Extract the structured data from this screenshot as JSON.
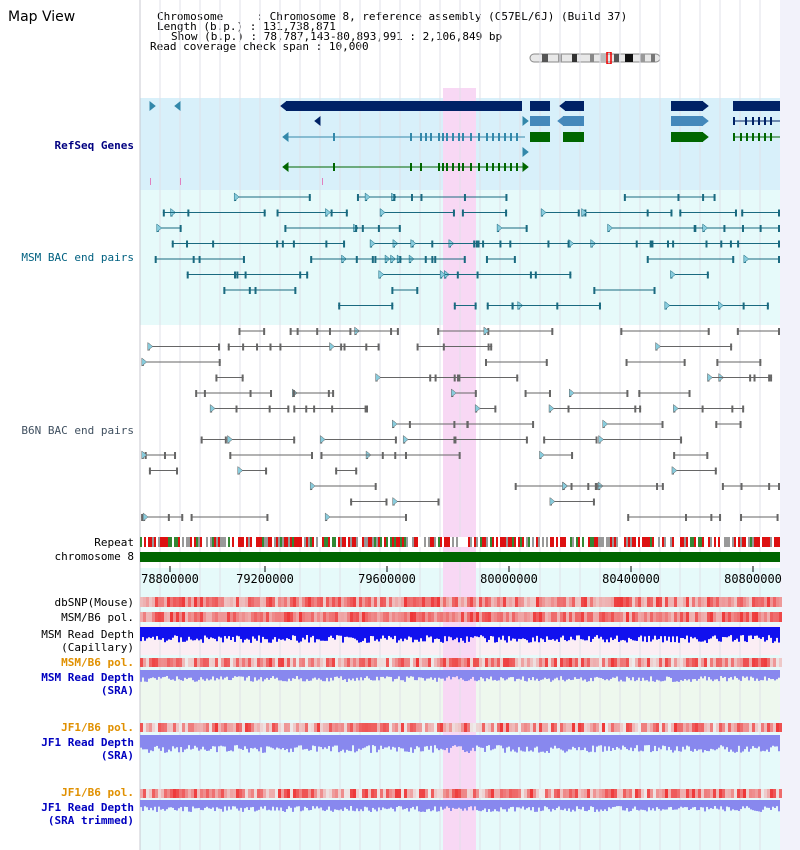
{
  "page": {
    "title": "Map View"
  },
  "info": {
    "chromosome_label": "Chromosome",
    "chromosome_value": "Chromosome 8, reference assembly (C57BL/6J) (Build 37)",
    "length_label": "Length (b.p.)",
    "length_value": "131,738,871",
    "show_label": "Show (b.p.)",
    "show_value": "78,787,143-80,893,991 : 2,106,849 bp",
    "span_label": "Read coverage check span",
    "span_value": "10,000"
  },
  "tracks": {
    "refseq": {
      "label": "RefSeq Genes",
      "color": "#000080"
    },
    "msm_bac": {
      "label": "MSM BAC end pairs",
      "color": "#006080"
    },
    "b6n_bac": {
      "label": "B6N BAC end pairs",
      "color": "#405060"
    },
    "repeat": {
      "label": "Repeat"
    },
    "chromosome": {
      "label": "chromosome 8"
    },
    "dbsnp": {
      "label": "dbSNP(Mouse)"
    },
    "msm_pol": {
      "label": "MSM/B6 pol."
    },
    "msm_depth_cap": {
      "label_1": "MSM Read Depth",
      "label_2": "(Capillary)"
    },
    "msm_pol_sra": {
      "label": "MSM/B6 pol.",
      "color": "#e09000"
    },
    "msm_depth_sra": {
      "label_1": "MSM Read Depth",
      "label_2": "(SRA)",
      "color": "#0000c0"
    },
    "jf1_pol": {
      "label": "JF1/B6 pol.",
      "color": "#e09000"
    },
    "jf1_depth": {
      "label_1": "JF1 Read Depth",
      "label_2": "(SRA)",
      "color": "#0000c0"
    },
    "jf1_pol_trim": {
      "label": "JF1/B6 pol.",
      "color": "#e09000"
    },
    "jf1_depth_trim": {
      "label_1": "JF1 Read Depth",
      "label_2": "(SRA trimmed)",
      "color": "#0000c0"
    }
  },
  "axis": {
    "ticks": [
      "78800000",
      "79200000",
      "79600000",
      "80000000",
      "80400000",
      "80800000"
    ]
  },
  "colors": {
    "refseq_bg": "#d8f0fa",
    "bac_bg": "#e6fafa",
    "highlight": "#f8d8f4",
    "chromosome_bar": "#006600",
    "refseq_dark": "#002266",
    "refseq_mid": "#4488bb",
    "refseq_green": "#006600",
    "snp": "#ee5555",
    "depth": "#1111ee",
    "depth_light": "#8888ee"
  }
}
